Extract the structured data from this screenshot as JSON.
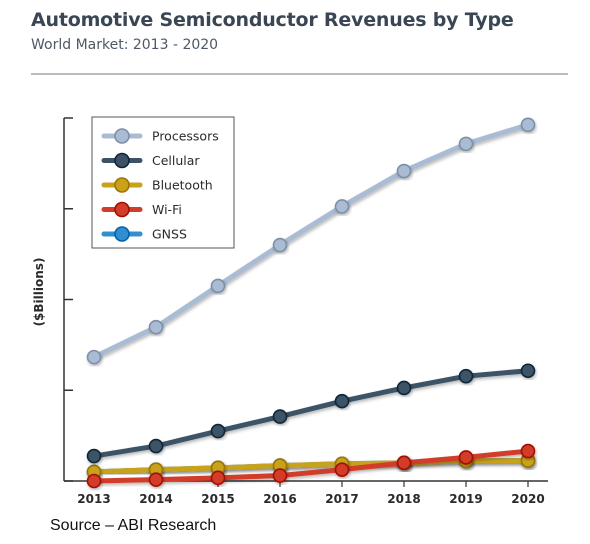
{
  "chart_data": {
    "type": "line",
    "title": "Automotive Semiconductor Revenues by Type",
    "subtitle": "World Market: 2013 - 2020",
    "ylabel": "($Billions)",
    "xlabel": "",
    "x": [
      "2013",
      "2014",
      "2015",
      "2016",
      "2017",
      "2018",
      "2019",
      "2020"
    ],
    "ylim": [
      0,
      8
    ],
    "yticks": [
      0,
      2,
      4,
      6,
      8
    ],
    "ytick_labels_shown": false,
    "grid": false,
    "legend_position": "top-left",
    "series": [
      {
        "name": "Processors",
        "color": "#a9bcd4",
        "values": [
          2.73,
          3.39,
          4.3,
          5.2,
          6.05,
          6.83,
          7.43,
          7.85
        ]
      },
      {
        "name": "Cellular",
        "color": "#3d5266",
        "values": [
          0.55,
          0.77,
          1.1,
          1.42,
          1.76,
          2.05,
          2.31,
          2.43
        ]
      },
      {
        "name": "Bluetooth",
        "color": "#c9a21a",
        "values": [
          0.2,
          0.25,
          0.29,
          0.34,
          0.38,
          0.4,
          0.44,
          0.45
        ]
      },
      {
        "name": "Wi-Fi",
        "color": "#d23c2a",
        "values": [
          0.0,
          0.03,
          0.07,
          0.12,
          0.25,
          0.4,
          0.52,
          0.66
        ]
      },
      {
        "name": "GNSS",
        "color": "#2f8fd1",
        "values": [
          0.2,
          0.25,
          0.29,
          0.34,
          0.38,
          0.4,
          0.44,
          0.45
        ]
      }
    ]
  },
  "source": "Source – ABI Research"
}
